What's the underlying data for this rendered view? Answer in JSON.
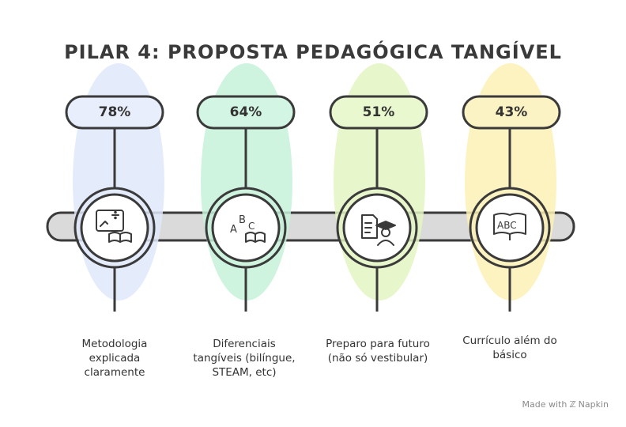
{
  "title": "PILAR 4: PROPOSTA PEDAGÓGICA TANGÍVEL",
  "items": [
    {
      "percent": "78%",
      "value": 78,
      "label": "Metodologia explicada claramente",
      "icon": "methodology-board-book-icon",
      "color": "#dfe8fa"
    },
    {
      "percent": "64%",
      "value": 64,
      "label": "Diferenciais tangíveis (bilíngue, STEAM, etc)",
      "icon": "abc-book-icon",
      "color": "#c6f2db"
    },
    {
      "percent": "51%",
      "value": 51,
      "label": "Preparo para futuro (não só vestibular)",
      "icon": "graduate-document-icon",
      "color": "#e4f5c2"
    },
    {
      "percent": "43%",
      "value": 43,
      "label": "Currículo além do básico",
      "icon": "abc-open-book-icon",
      "color": "#fbf1b5"
    }
  ],
  "branding": {
    "made_with": "Made with",
    "name": "Napkin"
  }
}
